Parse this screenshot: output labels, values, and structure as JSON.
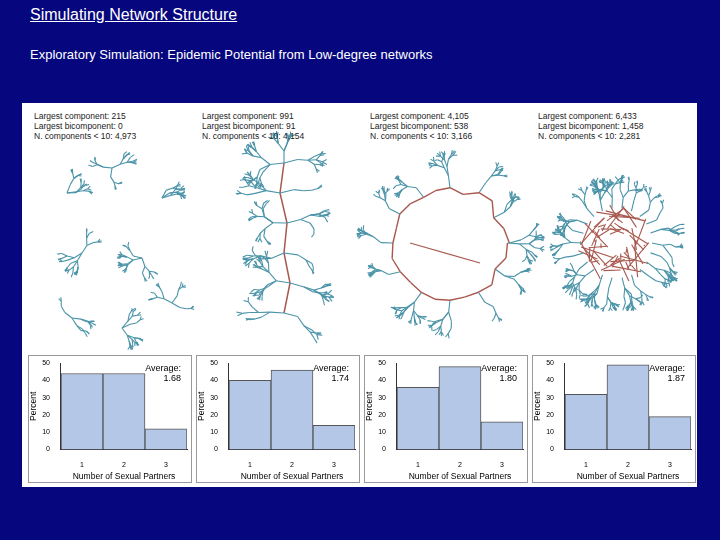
{
  "header": {
    "title": "Simulating Network Structure",
    "subtitle": "Exploratory Simulation:  Epidemic Potential from Low-degree networks"
  },
  "networks": [
    {
      "stats": [
        "Largest component: 215",
        "Largest bicomponent: 0",
        "N. components < 10: 4,973"
      ]
    },
    {
      "stats": [
        "Largest component: 991",
        "Largest bicomponent: 91",
        "N. components < 10: 4,154"
      ]
    },
    {
      "stats": [
        "Largest component: 4,105",
        "Largest bicomponent: 538",
        "N. components < 10: 3,166"
      ]
    },
    {
      "stats": [
        "Largest component: 6,433",
        "Largest bicomponent: 1,458",
        "N. components < 10: 2,281"
      ]
    }
  ],
  "chart_data": [
    {
      "type": "bar",
      "categories": [
        "1",
        "2",
        "3"
      ],
      "values": [
        44,
        44,
        12
      ],
      "color": "#b4c7e7",
      "x_label": "Number of Sexual Partners",
      "y_label": "Percent",
      "ylim": [
        0,
        50
      ],
      "yticks": [
        0,
        10,
        20,
        30,
        40,
        50
      ],
      "grid": false,
      "annotation": [
        "Average:",
        "1.68"
      ]
    },
    {
      "type": "bar",
      "categories": [
        "1",
        "2",
        "3"
      ],
      "values": [
        40,
        46,
        14
      ],
      "color": "#b4c7e7",
      "x_label": "Number of Sexual Partners",
      "y_label": "Percent",
      "ylim": [
        0,
        50
      ],
      "yticks": [
        0,
        10,
        20,
        30,
        40,
        50
      ],
      "grid": false,
      "annotation": [
        "Average:",
        "1.74"
      ]
    },
    {
      "type": "bar",
      "categories": [
        "1",
        "2",
        "3"
      ],
      "values": [
        36,
        48,
        16
      ],
      "color": "#b4c7e7",
      "x_label": "Number of Sexual Partners",
      "y_label": "Percent",
      "ylim": [
        0,
        50
      ],
      "yticks": [
        0,
        10,
        20,
        30,
        40,
        50
      ],
      "grid": false,
      "annotation": [
        "Average:",
        "1.80"
      ]
    },
    {
      "type": "bar",
      "categories": [
        "1",
        "2",
        "3"
      ],
      "values": [
        32,
        49,
        19
      ],
      "color": "#b4c7e7",
      "x_label": "Number of Sexual Partners",
      "y_label": "Percent",
      "ylim": [
        0,
        50
      ],
      "yticks": [
        0,
        10,
        20,
        30,
        40,
        50
      ],
      "grid": false,
      "annotation": [
        "Average:",
        "1.87"
      ]
    }
  ]
}
